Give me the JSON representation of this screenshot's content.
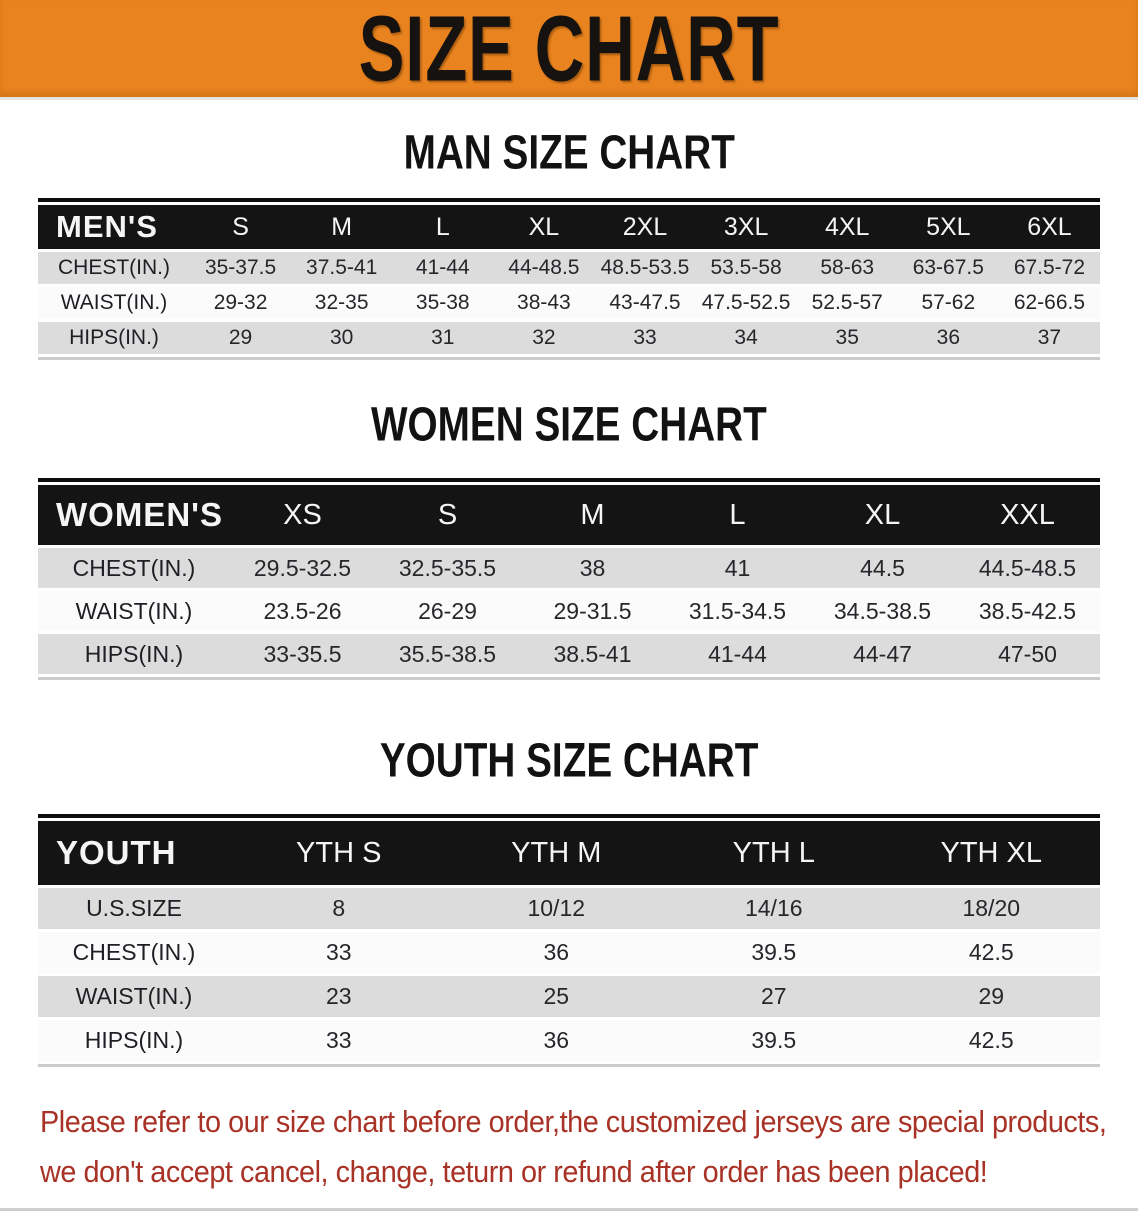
{
  "banner": {
    "title": "SIZE CHART",
    "background_color": "#E8831F",
    "title_color": "#151210"
  },
  "colors": {
    "table_header_bar": "#141414",
    "row_stripe_gray": "#DCDCDC",
    "row_plain_white": "#FBFBFB",
    "footer_text_red": "#A93226"
  },
  "men": {
    "heading": "MAN SIZE CHART",
    "header_label": "MEN'S",
    "columns": [
      "S",
      "M",
      "L",
      "XL",
      "2XL",
      "3XL",
      "4XL",
      "5XL",
      "6XL"
    ],
    "rows": [
      {
        "label": "CHEST(IN.)",
        "values": [
          "35-37.5",
          "37.5-41",
          "41-44",
          "44-48.5",
          "48.5-53.5",
          "53.5-58",
          "58-63",
          "63-67.5",
          "67.5-72"
        ]
      },
      {
        "label": "WAIST(IN.)",
        "values": [
          "29-32",
          "32-35",
          "35-38",
          "38-43",
          "43-47.5",
          "47.5-52.5",
          "52.5-57",
          "57-62",
          "62-66.5"
        ]
      },
      {
        "label": "HIPS(IN.)",
        "values": [
          "29",
          "30",
          "31",
          "32",
          "33",
          "34",
          "35",
          "36",
          "37"
        ]
      }
    ]
  },
  "women": {
    "heading": "WOMEN SIZE CHART",
    "header_label": "WOMEN'S",
    "columns": [
      "XS",
      "S",
      "M",
      "L",
      "XL",
      "XXL"
    ],
    "rows": [
      {
        "label": "CHEST(IN.)",
        "values": [
          "29.5-32.5",
          "32.5-35.5",
          "38",
          "41",
          "44.5",
          "44.5-48.5"
        ]
      },
      {
        "label": "WAIST(IN.)",
        "values": [
          "23.5-26",
          "26-29",
          "29-31.5",
          "31.5-34.5",
          "34.5-38.5",
          "38.5-42.5"
        ]
      },
      {
        "label": "HIPS(IN.)",
        "values": [
          "33-35.5",
          "35.5-38.5",
          "38.5-41",
          "41-44",
          "44-47",
          "47-50"
        ]
      }
    ]
  },
  "youth": {
    "heading": "YOUTH SIZE CHART",
    "header_label": "YOUTH",
    "columns": [
      "YTH S",
      "YTH M",
      "YTH L",
      "YTH XL"
    ],
    "rows": [
      {
        "label": "U.S.SIZE",
        "values": [
          "8",
          "10/12",
          "14/16",
          "18/20"
        ]
      },
      {
        "label": "CHEST(IN.)",
        "values": [
          "33",
          "36",
          "39.5",
          "42.5"
        ]
      },
      {
        "label": "WAIST(IN.)",
        "values": [
          "23",
          "25",
          "27",
          "29"
        ]
      },
      {
        "label": "HIPS(IN.)",
        "values": [
          "33",
          "36",
          "39.5",
          "42.5"
        ]
      }
    ]
  },
  "footer": {
    "line1": "Please refer to our size chart before order,the customized jerseys are special products,",
    "line2": "we don't accept cancel, change, teturn or refund after order has been placed!"
  }
}
